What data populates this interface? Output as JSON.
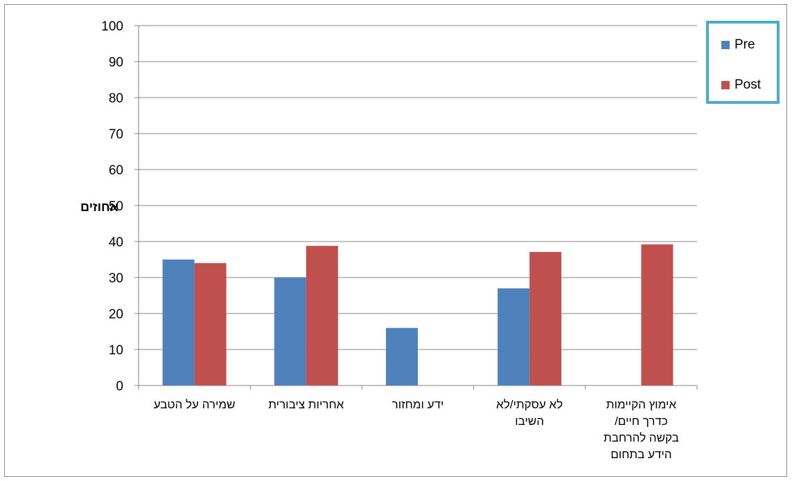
{
  "chart_data": {
    "type": "bar",
    "title": "",
    "xlabel": "",
    "ylabel": "אחוזים",
    "ylim": [
      0,
      100
    ],
    "yticks": [
      0,
      10,
      20,
      30,
      40,
      50,
      60,
      70,
      80,
      90,
      100
    ],
    "grid": true,
    "legend_position": "top-right",
    "categories": [
      [
        "שמירה על הטבע"
      ],
      [
        "אחריות ציבורית"
      ],
      [
        "ידע ומחזור"
      ],
      [
        "לא עסקתי/לא",
        "השיבו"
      ],
      [
        "אימוץ הקיימות",
        "כדרך חיים/",
        "בקשה להרחבת",
        "הידע בתחום"
      ]
    ],
    "series": [
      {
        "name": "Pre",
        "color": "#4f81bd",
        "values": [
          35,
          30,
          16,
          27,
          0
        ]
      },
      {
        "name": "Post",
        "color": "#c0504d",
        "values": [
          34,
          38.8,
          0,
          37.1,
          39.2
        ]
      }
    ]
  }
}
